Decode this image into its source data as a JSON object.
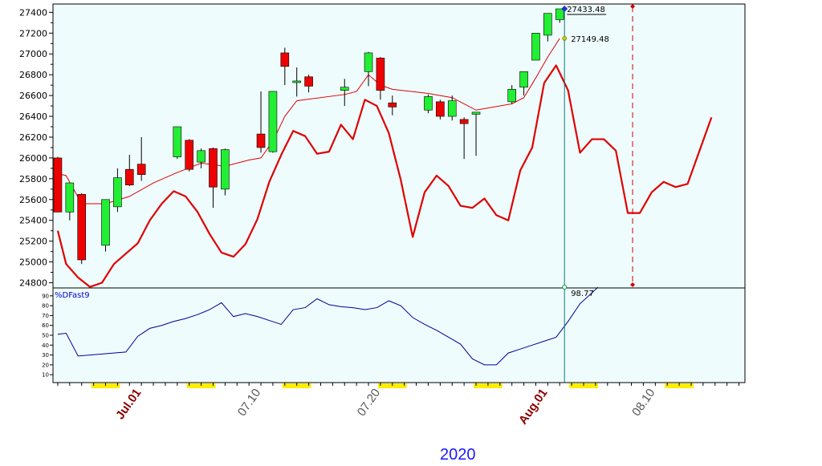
{
  "year_label": "2020",
  "colors": {
    "panel_bg": "#effcfd",
    "up": "#22ee33",
    "down": "#ee0000",
    "sma": "#e00000",
    "indicator": "#000099",
    "date_highlight": "#ffee00",
    "cursor": "#0a7a7a"
  },
  "chart_data": [
    {
      "type": "candlestick",
      "ylim": [
        24750,
        27480
      ],
      "y_ticks": [
        24800,
        25000,
        25200,
        25400,
        25600,
        25800,
        26000,
        26200,
        26400,
        26600,
        26800,
        27000,
        27200,
        27400
      ],
      "x_index_range": [
        -0.4,
        57.5
      ],
      "x_labels": [
        {
          "index": 7,
          "text": "Jul.01",
          "style": "month"
        },
        {
          "index": 17,
          "text": "07.10",
          "style": "day"
        },
        {
          "index": 27,
          "text": "07.20",
          "style": "day"
        },
        {
          "index": 41,
          "text": "Aug.01",
          "style": "month"
        },
        {
          "index": 50,
          "text": "08.10",
          "style": "day"
        }
      ],
      "highlight_ranges": [
        [
          3,
          5
        ],
        [
          11,
          13
        ],
        [
          19,
          21
        ],
        [
          27,
          29
        ],
        [
          35,
          37
        ],
        [
          43,
          45
        ],
        [
          51,
          53
        ]
      ],
      "candles": [
        {
          "i": 0,
          "o": 26000,
          "h": 26010,
          "l": 25480,
          "c": 25480
        },
        {
          "i": 1,
          "o": 25480,
          "h": 25760,
          "l": 25400,
          "c": 25760
        },
        {
          "i": 2,
          "o": 25650,
          "h": 25660,
          "l": 24980,
          "c": 25020
        },
        {
          "i": 4,
          "o": 25160,
          "h": 25600,
          "l": 25100,
          "c": 25600
        },
        {
          "i": 5,
          "o": 25530,
          "h": 25900,
          "l": 25480,
          "c": 25810
        },
        {
          "i": 6,
          "o": 25890,
          "h": 26030,
          "l": 25730,
          "c": 25740
        },
        {
          "i": 7,
          "o": 25940,
          "h": 26200,
          "l": 25780,
          "c": 25840
        },
        {
          "i": 10,
          "o": 26010,
          "h": 26300,
          "l": 25990,
          "c": 26300
        },
        {
          "i": 11,
          "o": 26170,
          "h": 26180,
          "l": 25870,
          "c": 25890
        },
        {
          "i": 12,
          "o": 25960,
          "h": 26090,
          "l": 25900,
          "c": 26070
        },
        {
          "i": 13,
          "o": 26090,
          "h": 26100,
          "l": 25520,
          "c": 25720
        },
        {
          "i": 14,
          "o": 25700,
          "h": 26090,
          "l": 25640,
          "c": 26080
        },
        {
          "i": 17,
          "o": 26230,
          "h": 26640,
          "l": 26050,
          "c": 26100
        },
        {
          "i": 18,
          "o": 26060,
          "h": 26640,
          "l": 26050,
          "c": 26640
        },
        {
          "i": 19,
          "o": 27010,
          "h": 27060,
          "l": 26700,
          "c": 26880
        },
        {
          "i": 20,
          "o": 26740,
          "h": 26870,
          "l": 26590,
          "c": 26740
        },
        {
          "i": 21,
          "o": 26780,
          "h": 26800,
          "l": 26630,
          "c": 26690
        },
        {
          "i": 24,
          "o": 26650,
          "h": 26760,
          "l": 26500,
          "c": 26680
        },
        {
          "i": 26,
          "o": 26830,
          "h": 27020,
          "l": 26690,
          "c": 27010
        },
        {
          "i": 27,
          "o": 26960,
          "h": 26970,
          "l": 26560,
          "c": 26650
        },
        {
          "i": 28,
          "o": 26530,
          "h": 26600,
          "l": 26410,
          "c": 26490
        },
        {
          "i": 31,
          "o": 26460,
          "h": 26610,
          "l": 26430,
          "c": 26590
        },
        {
          "i": 32,
          "o": 26540,
          "h": 26560,
          "l": 26370,
          "c": 26400
        },
        {
          "i": 33,
          "o": 26400,
          "h": 26600,
          "l": 26360,
          "c": 26550
        },
        {
          "i": 34,
          "o": 26370,
          "h": 26390,
          "l": 25990,
          "c": 26330
        },
        {
          "i": 35,
          "o": 26420,
          "h": 26440,
          "l": 26020,
          "c": 26440
        },
        {
          "i": 38,
          "o": 26540,
          "h": 26700,
          "l": 26520,
          "c": 26660
        },
        {
          "i": 39,
          "o": 26680,
          "h": 26830,
          "l": 26600,
          "c": 26830
        },
        {
          "i": 40,
          "o": 26940,
          "h": 27200,
          "l": 26940,
          "c": 27200
        },
        {
          "i": 41,
          "o": 27180,
          "h": 27390,
          "l": 27120,
          "c": 27390
        },
        {
          "i": 42,
          "o": 27330,
          "h": 27433.48,
          "l": 27300,
          "c": 27433.48
        }
      ],
      "sma_line": [
        [
          0,
          25850
        ],
        [
          0.7,
          25830
        ],
        [
          2,
          25560
        ],
        [
          4,
          25560
        ],
        [
          6,
          25630
        ],
        [
          8,
          25760
        ],
        [
          10,
          25860
        ],
        [
          12,
          25950
        ],
        [
          14,
          25920
        ],
        [
          16,
          25980
        ],
        [
          17,
          26000
        ],
        [
          18,
          26160
        ],
        [
          19,
          26400
        ],
        [
          20,
          26550
        ],
        [
          24,
          26610
        ],
        [
          25,
          26640
        ],
        [
          26,
          26800
        ],
        [
          27,
          26700
        ],
        [
          28,
          26660
        ],
        [
          31,
          26620
        ],
        [
          33,
          26580
        ],
        [
          35,
          26460
        ],
        [
          38,
          26520
        ],
        [
          39,
          26580
        ],
        [
          40,
          26770
        ],
        [
          41,
          26970
        ],
        [
          42,
          27149.48
        ]
      ],
      "smooth_line": [
        [
          0,
          25300
        ],
        [
          0.7,
          24980
        ],
        [
          1.7,
          24850
        ],
        [
          2.7,
          24760
        ],
        [
          3.7,
          24800
        ],
        [
          4.7,
          24980
        ],
        [
          5.7,
          25080
        ],
        [
          6.7,
          25180
        ],
        [
          7.7,
          25400
        ],
        [
          8.7,
          25560
        ],
        [
          9.7,
          25680
        ],
        [
          10.7,
          25630
        ],
        [
          11.7,
          25480
        ],
        [
          12.7,
          25270
        ],
        [
          13.7,
          25090
        ],
        [
          14.7,
          25050
        ],
        [
          15.7,
          25170
        ],
        [
          16.7,
          25410
        ],
        [
          17.7,
          25770
        ],
        [
          18.7,
          26030
        ],
        [
          19.7,
          26260
        ],
        [
          20.7,
          26210
        ],
        [
          21.7,
          26040
        ],
        [
          22.7,
          26060
        ],
        [
          23.7,
          26320
        ],
        [
          24.7,
          26180
        ],
        [
          25.7,
          26560
        ],
        [
          26.7,
          26500
        ],
        [
          27.7,
          26240
        ],
        [
          28.7,
          25790
        ],
        [
          29.7,
          25240
        ],
        [
          30.7,
          25670
        ],
        [
          31.7,
          25830
        ],
        [
          32.7,
          25730
        ],
        [
          33.7,
          25540
        ],
        [
          34.7,
          25520
        ],
        [
          35.7,
          25610
        ],
        [
          36.7,
          25450
        ],
        [
          37.7,
          25400
        ],
        [
          38.7,
          25880
        ],
        [
          39.7,
          26100
        ],
        [
          40.7,
          26720
        ],
        [
          41.7,
          26890
        ],
        [
          42.7,
          26650
        ],
        [
          43.7,
          26050
        ],
        [
          44.7,
          26180
        ],
        [
          45.7,
          26180
        ],
        [
          46.7,
          26070
        ],
        [
          47.7,
          25470
        ],
        [
          48.7,
          25470
        ],
        [
          49.7,
          25670
        ],
        [
          50.7,
          25770
        ],
        [
          51.7,
          25720
        ],
        [
          52.7,
          25750
        ],
        [
          53.7,
          26070
        ],
        [
          54.7,
          26390
        ]
      ],
      "cursor_index": 42.4,
      "future_marker_index": 48.1,
      "value_labels": [
        {
          "text": "27433.48",
          "value": 27433.48
        },
        {
          "text": "27149.48",
          "value": 27149.48
        }
      ]
    },
    {
      "type": "line",
      "name": "%DFast9",
      "ylim": [
        2,
        98
      ],
      "y_ticks": [
        10,
        20,
        30,
        40,
        50,
        60,
        70,
        80,
        90
      ],
      "series": [
        {
          "name": "%DFast9",
          "points": [
            [
              0,
              51
            ],
            [
              0.7,
              52
            ],
            [
              1.7,
              29
            ],
            [
              2.7,
              30
            ],
            [
              3.7,
              31
            ],
            [
              4.7,
              32
            ],
            [
              5.7,
              33
            ],
            [
              6.7,
              49
            ],
            [
              7.7,
              57
            ],
            [
              8.7,
              60
            ],
            [
              9.7,
              64
            ],
            [
              10.7,
              67
            ],
            [
              11.7,
              71
            ],
            [
              12.7,
              76
            ],
            [
              13.7,
              83
            ],
            [
              14.7,
              69
            ],
            [
              15.7,
              72
            ],
            [
              16.7,
              69
            ],
            [
              17.7,
              65
            ],
            [
              18.7,
              61
            ],
            [
              19.7,
              76
            ],
            [
              20.7,
              78
            ],
            [
              21.7,
              87
            ],
            [
              22.7,
              81
            ],
            [
              23.7,
              79
            ],
            [
              24.7,
              78
            ],
            [
              25.7,
              76
            ],
            [
              26.7,
              78
            ],
            [
              27.7,
              85
            ],
            [
              28.7,
              80
            ],
            [
              29.7,
              68
            ],
            [
              30.7,
              61
            ],
            [
              31.7,
              55
            ],
            [
              32.7,
              48
            ],
            [
              33.7,
              41
            ],
            [
              34.7,
              26
            ],
            [
              35.7,
              20
            ],
            [
              36.7,
              20
            ],
            [
              37.7,
              32
            ],
            [
              38.7,
              36
            ],
            [
              39.7,
              40
            ],
            [
              40.7,
              44
            ],
            [
              41.7,
              48
            ],
            [
              42.7,
              64
            ],
            [
              43.7,
              82
            ],
            [
              44.7,
              93
            ],
            [
              45.2,
              98.77
            ]
          ]
        }
      ],
      "value_label": {
        "text": "98.77",
        "value": 98.77
      }
    }
  ]
}
